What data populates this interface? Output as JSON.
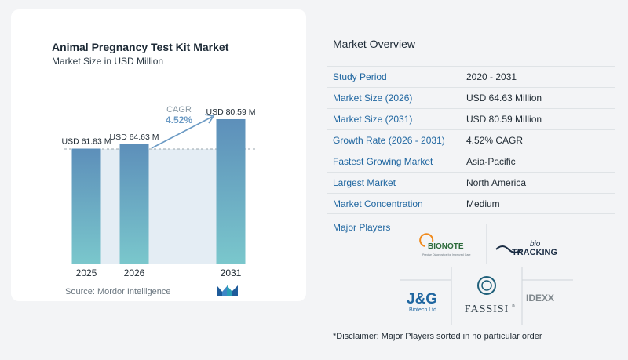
{
  "chart_data": {
    "type": "bar",
    "title": "Animal Pregnancy Test Kit Market",
    "subtitle": "Market Size in USD Million",
    "categories": [
      "2025",
      "2026",
      "2031"
    ],
    "values": [
      61.83,
      64.63,
      80.59
    ],
    "value_labels": [
      "USD 61.83 M",
      "USD 64.63 M",
      "USD 80.59 M"
    ],
    "cagr_label": "CAGR",
    "cagr_value": "4.52%",
    "bar_color_top": "#5d8fba",
    "bar_color_bottom": "#7ac7cc",
    "band_color": "#e4edf4"
  },
  "source": "Source:  Mordor Intelligence",
  "overview": {
    "title": "Market Overview",
    "rows": [
      {
        "label": "Study Period",
        "value": "2020 - 2031"
      },
      {
        "label": "Market Size (2026)",
        "value": "USD 64.63 Million"
      },
      {
        "label": "Market Size (2031)",
        "value": "USD 80.59 Million"
      },
      {
        "label": "Growth Rate (2026 - 2031)",
        "value": "4.52% CAGR"
      },
      {
        "label": "Fastest Growing Market",
        "value": "Asia-Pacific"
      },
      {
        "label": "Largest Market",
        "value": "North America"
      },
      {
        "label": "Market Concentration",
        "value": "Medium"
      }
    ]
  },
  "players": {
    "label": "Major Players",
    "logos": [
      {
        "name": "BIONOTE",
        "tagline": "Precise Diagnostics for Improved Care"
      },
      {
        "name": "bio TRACKING",
        "prefix": "bio",
        "main": "TRACKING"
      },
      {
        "name": "J&G Biotech Ltd",
        "main": "J&G",
        "sub": "Biotech Ltd"
      },
      {
        "name": "FASSISI",
        "mark": "®"
      },
      {
        "name": "IDEXX"
      }
    ]
  },
  "disclaimer": "*Disclaimer: Major Players sorted in no particular order"
}
